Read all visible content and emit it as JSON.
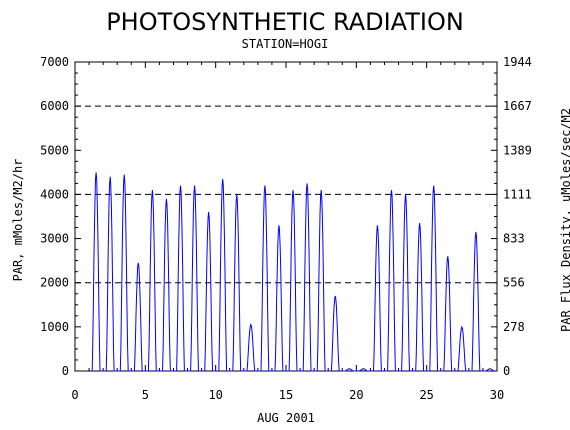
{
  "chart_data": {
    "type": "line",
    "title": "PHOTOSYNTHETIC RADIATION",
    "subtitle": "STATION=HOGI",
    "xlabel": "AUG 2001",
    "ylabel": "PAR, mMoles/M2/hr",
    "y2label": "PAR Flux Density, uMoles/sec/M2",
    "xlim": [
      0,
      30
    ],
    "ylim": [
      0,
      7000
    ],
    "x_ticks": [
      "0",
      "5",
      "10",
      "15",
      "20",
      "25",
      "30"
    ],
    "x_tick_values": [
      0,
      5,
      10,
      15,
      20,
      25,
      30
    ],
    "y_ticks": [
      "0",
      "1000",
      "2000",
      "3000",
      "4000",
      "5000",
      "6000",
      "7000"
    ],
    "y_tick_values": [
      0,
      1000,
      2000,
      3000,
      4000,
      5000,
      6000,
      7000
    ],
    "y2_ticks": [
      "0",
      "278",
      "556",
      "833",
      "1111",
      "1389",
      "1667",
      "1944"
    ],
    "y2_tick_values": [
      0,
      1000,
      2000,
      3000,
      4000,
      5000,
      6000,
      7000
    ],
    "dashed_gridlines_y": [
      2000,
      4000,
      6000
    ],
    "line_color": "#0000ff",
    "series": [
      {
        "daily_peaks": [
          {
            "day": 1,
            "peak": 4500
          },
          {
            "day": 2,
            "peak": 4400
          },
          {
            "day": 3,
            "peak": 4450
          },
          {
            "day": 4,
            "peak": 2450
          },
          {
            "day": 5,
            "peak": 4100
          },
          {
            "day": 6,
            "peak": 3900
          },
          {
            "day": 7,
            "peak": 4200
          },
          {
            "day": 8,
            "peak": 4200
          },
          {
            "day": 9,
            "peak": 3600
          },
          {
            "day": 10,
            "peak": 4350
          },
          {
            "day": 11,
            "peak": 4000
          },
          {
            "day": 12,
            "peak": 1050
          },
          {
            "day": 13,
            "peak": 4200
          },
          {
            "day": 14,
            "peak": 3300
          },
          {
            "day": 15,
            "peak": 4100
          },
          {
            "day": 16,
            "peak": 4250
          },
          {
            "day": 17,
            "peak": 4100
          },
          {
            "day": 18,
            "peak": 1700
          },
          {
            "day": 19,
            "peak": 50
          },
          {
            "day": 20,
            "peak": 50
          },
          {
            "day": 21,
            "peak": 3300
          },
          {
            "day": 22,
            "peak": 4100
          },
          {
            "day": 23,
            "peak": 4000
          },
          {
            "day": 24,
            "peak": 3350
          },
          {
            "day": 25,
            "peak": 4200
          },
          {
            "day": 26,
            "peak": 2600
          },
          {
            "day": 27,
            "peak": 1000
          },
          {
            "day": 28,
            "peak": 3150
          },
          {
            "day": 29,
            "peak": 50
          }
        ]
      }
    ]
  }
}
